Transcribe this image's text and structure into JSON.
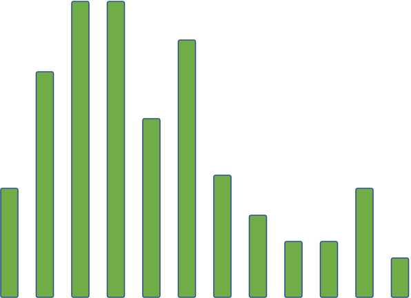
{
  "chart_data": {
    "type": "bar",
    "title": "",
    "xlabel": "",
    "ylabel": "",
    "ylim": [
      0,
      430
    ],
    "grid": false,
    "legend": "none",
    "colors": {
      "bar_fill": "#70ad47",
      "bar_stroke": "#2f4f8f",
      "background": "#ffffff"
    },
    "values": [
      158,
      327,
      429,
      429,
      259,
      373,
      177,
      119,
      81,
      81,
      158,
      57
    ]
  }
}
